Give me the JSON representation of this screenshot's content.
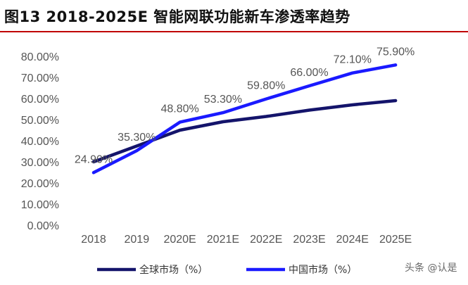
{
  "header": {
    "title": "图13 2018-2025E 智能网联功能新车渗透率趋势"
  },
  "watermark": "头条 @认是",
  "chart_data": {
    "type": "line",
    "categories": [
      "2018",
      "2019",
      "2020E",
      "2021E",
      "2022E",
      "2023E",
      "2024E",
      "2025E"
    ],
    "ylim": [
      0,
      80
    ],
    "ytick_labels": [
      "0.00%",
      "10.00%",
      "20.00%",
      "30.00%",
      "40.00%",
      "50.00%",
      "60.00%",
      "70.00%",
      "80.00%"
    ],
    "grid": false,
    "legend_position": "bottom",
    "series": [
      {
        "name": "全球市场（%）",
        "color": "#14146b",
        "values": [
          30.0,
          37.5,
          45.0,
          49.0,
          51.5,
          54.5,
          57.0,
          59.0
        ],
        "data_labels": []
      },
      {
        "name": "中国市场（%）",
        "color": "#1a1aff",
        "values": [
          24.9,
          35.3,
          48.8,
          53.3,
          59.8,
          66.0,
          72.1,
          75.9
        ],
        "data_labels": [
          "24.90%",
          "35.30%",
          "48.80%",
          "53.30%",
          "59.80%",
          "66.00%",
          "72.10%",
          "75.90%"
        ]
      }
    ]
  }
}
